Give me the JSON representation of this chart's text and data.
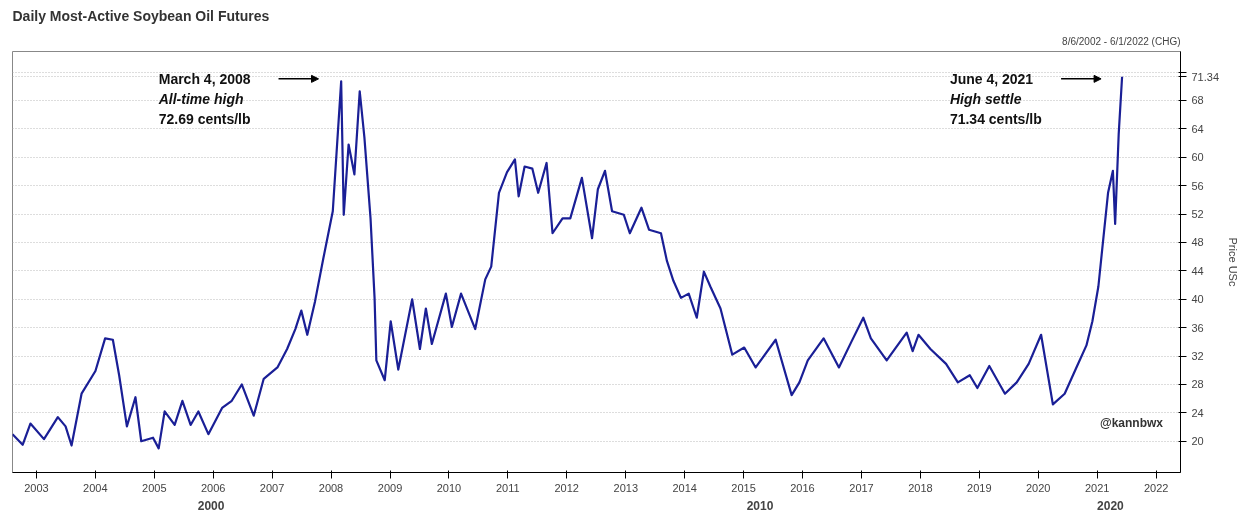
{
  "chart_data": {
    "type": "line",
    "title": "Daily Most-Active Soybean Oil Futures",
    "subtitle": "8/6/2002 - 6/1/2022 (CHG)",
    "ylabel": "Price USc",
    "x": [
      "2002-08-06",
      "2002-10-08",
      "2002-11-25",
      "2003-02-17",
      "2003-05-14",
      "2003-07-01",
      "2003-08-07",
      "2003-10-08",
      "2004-01-02",
      "2004-03-02",
      "2004-04-19",
      "2004-05-28",
      "2004-07-15",
      "2004-09-06",
      "2004-10-12",
      "2004-12-24",
      "2005-01-28",
      "2005-03-06",
      "2005-05-07",
      "2005-06-24",
      "2005-08-14",
      "2005-10-01",
      "2005-12-02",
      "2006-02-25",
      "2006-04-26",
      "2006-06-27",
      "2006-09-09",
      "2006-11-10",
      "2007-02-03",
      "2007-04-04",
      "2007-05-25",
      "2007-07-01",
      "2007-08-07",
      "2007-09-24",
      "2007-11-14",
      "2008-01-12",
      "2008-03-04",
      "2008-03-20",
      "2008-04-19",
      "2008-05-25",
      "2008-06-27",
      "2008-07-26",
      "2008-09-02",
      "2008-09-27",
      "2008-10-08",
      "2008-11-29",
      "2009-01-05",
      "2009-02-21",
      "2009-05-18",
      "2009-07-05",
      "2009-08-11",
      "2009-09-17",
      "2009-12-13",
      "2010-01-19",
      "2010-03-17",
      "2010-06-13",
      "2010-08-14",
      "2010-09-20",
      "2010-11-07",
      "2010-12-27",
      "2011-02-14",
      "2011-03-09",
      "2011-04-15",
      "2011-06-02",
      "2011-07-08",
      "2011-08-29",
      "2011-10-05",
      "2011-12-06",
      "2012-01-23",
      "2012-04-04",
      "2012-06-06",
      "2012-07-12",
      "2012-08-25",
      "2012-10-08",
      "2012-12-20",
      "2013-01-26",
      "2013-04-08",
      "2013-05-25",
      "2013-08-07",
      "2013-09-13",
      "2013-10-23",
      "2013-12-09",
      "2014-01-26",
      "2014-03-17",
      "2014-04-30",
      "2014-06-09",
      "2014-08-11",
      "2014-10-23",
      "2015-01-05",
      "2015-03-17",
      "2015-07-19",
      "2015-10-26",
      "2015-12-13",
      "2016-02-03",
      "2016-05-11",
      "2016-08-14",
      "2016-10-30",
      "2017-01-12",
      "2017-02-28",
      "2017-06-06",
      "2017-10-08",
      "2017-11-14",
      "2017-12-20",
      "2018-03-04",
      "2018-06-09",
      "2018-08-21",
      "2018-11-03",
      "2018-12-20",
      "2019-03-04",
      "2019-06-09",
      "2019-08-21",
      "2019-11-03",
      "2020-01-19",
      "2020-04-01",
      "2020-06-13",
      "2020-08-25",
      "2020-10-26",
      "2020-12-02",
      "2021-01-08",
      "2021-03-09",
      "2021-04-08",
      "2021-04-22",
      "2021-05-14",
      "2021-06-04"
    ],
    "series": [
      {
        "color": "#1a1f96",
        "values": [
          21.0,
          19.5,
          22.5,
          20.3,
          23.4,
          22.1,
          19.4,
          26.7,
          29.9,
          34.5,
          34.3,
          29.3,
          22.1,
          26.2,
          20.0,
          20.5,
          19.0,
          24.2,
          22.3,
          25.7,
          22.3,
          24.2,
          21.0,
          24.7,
          25.7,
          28.0,
          23.6,
          28.8,
          30.4,
          33.0,
          35.8,
          38.4,
          35.0,
          39.7,
          45.7,
          52.4,
          70.7,
          51.9,
          61.8,
          57.6,
          69.3,
          62.8,
          51.4,
          40.2,
          31.4,
          28.6,
          36.9,
          30.1,
          40.0,
          33.0,
          38.7,
          33.7,
          40.8,
          36.1,
          40.8,
          35.8,
          42.8,
          44.6,
          55.0,
          57.9,
          59.7,
          54.5,
          58.7,
          58.4,
          55.0,
          59.2,
          49.3,
          51.4,
          51.4,
          57.1,
          48.6,
          55.5,
          58.1,
          52.4,
          51.9,
          49.3,
          52.9,
          49.8,
          49.3,
          45.4,
          42.6,
          40.2,
          40.8,
          37.4,
          43.9,
          41.8,
          38.7,
          32.2,
          33.2,
          30.4,
          34.3,
          26.5,
          28.3,
          31.4,
          34.5,
          30.4,
          34.0,
          37.4,
          34.5,
          31.4,
          35.3,
          32.7,
          35.0,
          33.0,
          30.9,
          28.3,
          29.3,
          27.5,
          30.6,
          26.7,
          28.3,
          30.9,
          35.0,
          25.2,
          26.7,
          30.4,
          33.5,
          36.9,
          41.8,
          55.0,
          58.1,
          50.6,
          63.3,
          71.34
        ]
      }
    ],
    "xlim": [
      "2002-08-06",
      "2022-06-01"
    ],
    "xticks": [
      "2003",
      "2004",
      "2005",
      "2006",
      "2007",
      "2008",
      "2009",
      "2010",
      "2011",
      "2012",
      "2013",
      "2014",
      "2015",
      "2016",
      "2017",
      "2018",
      "2019",
      "2020",
      "2021",
      "2022"
    ],
    "ylim": [
      15.6,
      74.9
    ],
    "yticks": [
      20,
      24,
      28,
      32,
      36,
      40,
      44,
      48,
      52,
      56,
      60,
      64,
      68,
      {
        "value": 71.34,
        "label": "71.34"
      },
      {
        "value": 72,
        "label": null
      }
    ],
    "grid": true,
    "marker": "none",
    "line_style": "solid",
    "annotations": [
      "March 4, 2008\nAll-time high\n72.69 cents/lb",
      "June 4, 2021\nHigh settle\n71.34 cents/lb",
      "2000",
      "2010",
      "2020",
      "@kannbwx"
    ]
  }
}
